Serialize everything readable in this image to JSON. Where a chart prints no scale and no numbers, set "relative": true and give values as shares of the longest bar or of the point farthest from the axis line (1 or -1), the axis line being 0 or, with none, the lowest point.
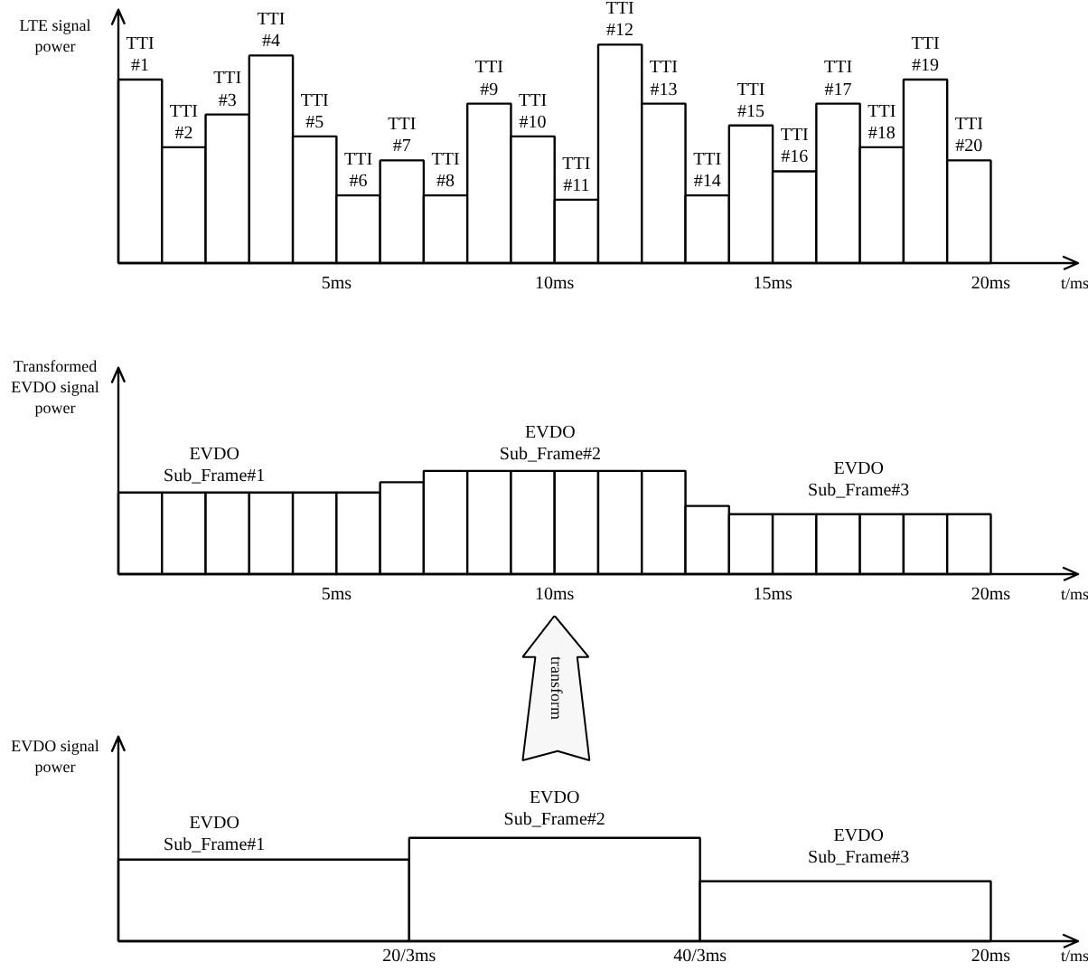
{
  "chart_data": [
    {
      "type": "bar",
      "relative": true,
      "color": "#ffffff",
      "ylabel": "LTE signal\npower",
      "xlabel": "t/ms",
      "xlim": [
        0,
        22
      ],
      "xticks": [
        {
          "value": 5,
          "label": "5ms"
        },
        {
          "value": 10,
          "label": "10ms"
        },
        {
          "value": 15,
          "label": "15ms"
        },
        {
          "value": 20,
          "label": "20ms"
        }
      ],
      "x": [
        0.5,
        1.5,
        2.5,
        3.5,
        4.5,
        5.5,
        6.5,
        7.5,
        8.5,
        9.5,
        10.5,
        11.5,
        12.5,
        13.5,
        14.5,
        15.5,
        16.5,
        17.5,
        18.5,
        19.5
      ],
      "values": [
        0.84,
        0.53,
        0.68,
        0.95,
        0.58,
        0.31,
        0.47,
        0.31,
        0.73,
        0.58,
        0.29,
        1,
        0.73,
        0.31,
        0.63,
        0.42,
        0.73,
        0.53,
        0.84,
        0.47
      ],
      "annotations": [
        {
          "text": "TTI\n#1",
          "x": 0.5,
          "y": 0.84
        },
        {
          "text": "TTI\n#2",
          "x": 1.5,
          "y": 0.53
        },
        {
          "text": "TTI\n#3",
          "x": 2.5,
          "y": 0.68
        },
        {
          "text": "TTI\n#4",
          "x": 3.5,
          "y": 0.95
        },
        {
          "text": "TTI\n#5",
          "x": 4.5,
          "y": 0.58
        },
        {
          "text": "TTI\n#6",
          "x": 5.5,
          "y": 0.31
        },
        {
          "text": "TTI\n#7",
          "x": 6.5,
          "y": 0.47
        },
        {
          "text": "TTI\n#8",
          "x": 7.5,
          "y": 0.31
        },
        {
          "text": "TTI\n#9",
          "x": 8.5,
          "y": 0.73
        },
        {
          "text": "TTI\n#10",
          "x": 9.5,
          "y": 0.58
        },
        {
          "text": "TTI\n#11",
          "x": 10.5,
          "y": 0.29
        },
        {
          "text": "TTI\n#12",
          "x": 11.5,
          "y": 1
        },
        {
          "text": "TTI\n#13",
          "x": 12.5,
          "y": 0.73
        },
        {
          "text": "TTI\n#14",
          "x": 13.5,
          "y": 0.31
        },
        {
          "text": "TTI\n#15",
          "x": 14.5,
          "y": 0.63
        },
        {
          "text": "TTI\n#16",
          "x": 15.5,
          "y": 0.42
        },
        {
          "text": "TTI\n#17",
          "x": 16.5,
          "y": 0.73
        },
        {
          "text": "TTI\n#18",
          "x": 17.5,
          "y": 0.53
        },
        {
          "text": "TTI\n#19",
          "x": 18.5,
          "y": 0.84
        },
        {
          "text": "TTI\n#20",
          "x": 19.5,
          "y": 0.47
        }
      ]
    },
    {
      "type": "bar",
      "relative": true,
      "color": "#ffffff",
      "ylabel": "Transformed\nEVDO signal\npower",
      "xlabel": "t/ms",
      "xlim": [
        0,
        22
      ],
      "xticks": [
        {
          "value": 5,
          "label": "5ms"
        },
        {
          "value": 10,
          "label": "10ms"
        },
        {
          "value": 15,
          "label": "15ms"
        },
        {
          "value": 20,
          "label": "20ms"
        }
      ],
      "x": [
        0.5,
        1.5,
        2.5,
        3.5,
        4.5,
        5.5,
        6.5,
        7.5,
        8.5,
        9.5,
        10.5,
        11.5,
        12.5,
        13.5,
        14.5,
        15.5,
        16.5,
        17.5,
        18.5,
        19.5
      ],
      "values": [
        0.79,
        0.79,
        0.79,
        0.79,
        0.79,
        0.79,
        0.89,
        1,
        1,
        1,
        1,
        1,
        1,
        0.66,
        0.58,
        0.58,
        0.58,
        0.58,
        0.58,
        0.58
      ],
      "annotations": [
        "EVDO\nSub_Frame#1",
        "EVDO\nSub_Frame#2",
        "EVDO\nSub_Frame#3"
      ]
    },
    {
      "type": "bar",
      "relative": true,
      "color": "#ffffff",
      "ylabel": "EVDO signal\npower",
      "xlabel": "t/ms",
      "categories": [
        null,
        null,
        null
      ],
      "values": [
        0.79,
        1,
        0.58
      ],
      "annotations": [
        "EVDO\nSub_Frame#1",
        "EVDO\nSub_Frame#2",
        "EVDO\nSub_Frame#3",
        "20/3ms",
        "40/3ms",
        "20ms",
        "transform"
      ]
    }
  ]
}
